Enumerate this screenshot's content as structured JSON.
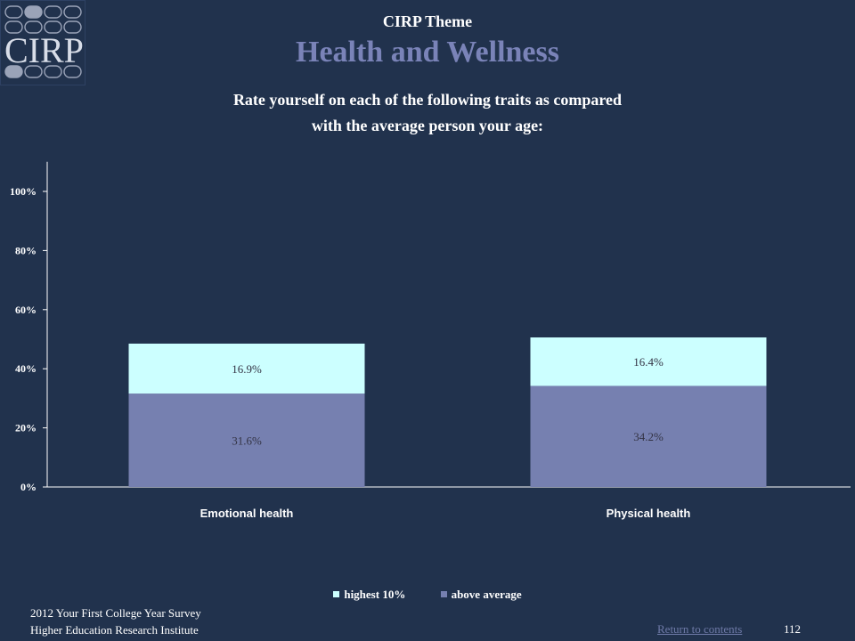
{
  "logo": {
    "text": "CIRP"
  },
  "header": {
    "theme_label": "CIRP Theme",
    "theme_title": "Health and Wellness",
    "question_line1": "Rate yourself on each of the following traits as compared",
    "question_line2": "with the average person your age:"
  },
  "chart_data": {
    "type": "bar",
    "stacked": true,
    "categories": [
      "Emotional health",
      "Physical health"
    ],
    "series": [
      {
        "name": "above average",
        "values": [
          31.6,
          34.2
        ],
        "labels": [
          "31.6%",
          "34.2%"
        ],
        "color": "#7680b0"
      },
      {
        "name": "highest 10%",
        "values": [
          16.9,
          16.4
        ],
        "labels": [
          "16.9%",
          "16.4%"
        ],
        "color": "#ccffff"
      }
    ],
    "ylim": [
      0,
      110
    ],
    "yticks": [
      "0%",
      "20%",
      "40%",
      "60%",
      "80%",
      "100%"
    ],
    "ytick_values": [
      0,
      20,
      40,
      60,
      80,
      100
    ],
    "legend_position": "bottom",
    "grid": false
  },
  "legend": [
    {
      "label": "highest 10%",
      "color": "#ccffff"
    },
    {
      "label": "above average",
      "color": "#7680b0"
    }
  ],
  "footer": {
    "survey": "2012 Your First College Year Survey",
    "institute": "Higher Education Research Institute",
    "return_link": "Return to contents",
    "page_number": "112"
  }
}
